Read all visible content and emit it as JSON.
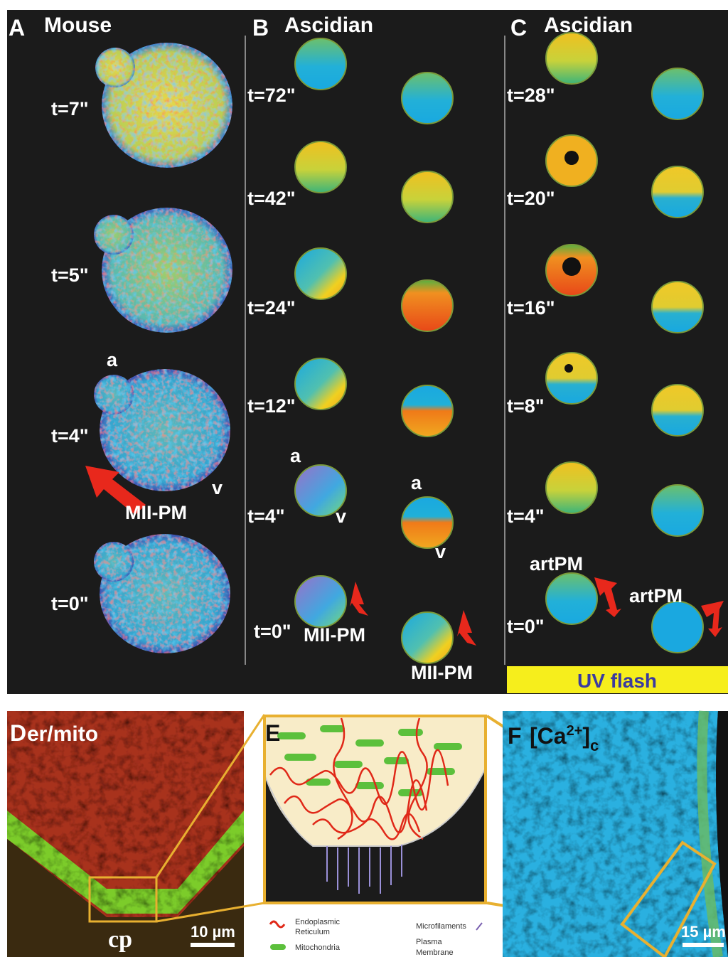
{
  "panels": {
    "A": {
      "letter": "A",
      "title": "Mouse",
      "times": [
        "t=7\"",
        "t=5\"",
        "t=4\"",
        "t=0\""
      ],
      "labels": [
        "a",
        "v",
        "MII-PM"
      ]
    },
    "B": {
      "letter": "B",
      "title": "Ascidian",
      "times": [
        "t=72\"",
        "t=42\"",
        "t=24\"",
        "t=12\"",
        "t=4\"",
        "t=0\""
      ],
      "left_labels": [
        "a",
        "v",
        "MII-PM"
      ],
      "right_labels": [
        "a",
        "v",
        "MII-PM"
      ]
    },
    "C": {
      "letter": "C",
      "title": "Ascidian",
      "times": [
        "t=28\"",
        "t=20\"",
        "t=16\"",
        "t=8\"",
        "t=4\"",
        "t=0\""
      ],
      "labels": [
        "artPM",
        "artPM"
      ],
      "bar": "UV flash"
    },
    "D": {
      "letter": "D",
      "title": "er/mito",
      "label": "cp",
      "scale": "10 µm"
    },
    "E": {
      "letter": "E",
      "legend": [
        {
          "lines": [
            "Endoplasmic",
            "Reticulum"
          ]
        },
        {
          "lines": [
            "Mitochondria"
          ]
        },
        {
          "lines": [
            "Microfilaments"
          ]
        },
        {
          "lines": [
            "Plasma",
            "Membrane"
          ]
        }
      ]
    },
    "F": {
      "letter": "F",
      "title": {
        "prefix": "[Ca",
        "sup": "2+",
        "close": "]",
        "sub": "c"
      },
      "scale": "15 µm"
    }
  }
}
